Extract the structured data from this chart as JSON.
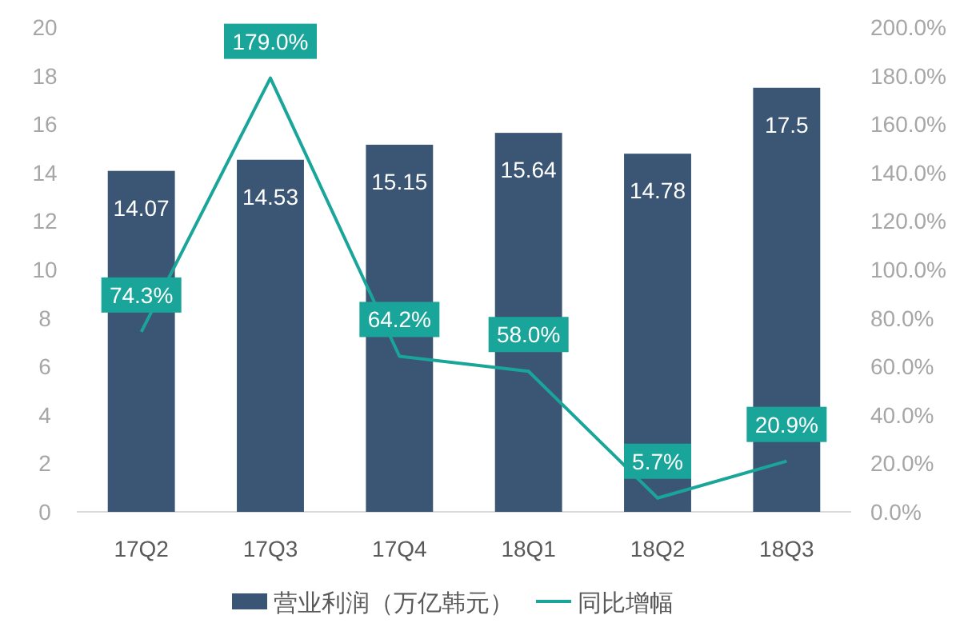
{
  "chart_data": {
    "type": "bar",
    "categories": [
      "17Q2",
      "17Q3",
      "17Q4",
      "18Q1",
      "18Q2",
      "18Q3"
    ],
    "series": [
      {
        "name": "营业利润（万亿韩元）",
        "color": "#3b5674",
        "values": [
          14.07,
          14.53,
          15.15,
          15.64,
          14.78,
          17.5
        ]
      },
      {
        "name": "同比增幅",
        "type": "line",
        "axis": "y2",
        "color": "#1aa59a",
        "values": [
          74.3,
          179.0,
          64.2,
          58.0,
          5.7,
          20.9
        ],
        "value_labels": [
          "74.3%",
          "179.0%",
          "64.2%",
          "58.0%",
          "5.7%",
          "20.9%"
        ]
      }
    ],
    "data_labels": true,
    "ylim": [
      0,
      20
    ],
    "yticks": [
      0,
      2,
      4,
      6,
      8,
      10,
      12,
      14,
      16,
      18,
      20
    ],
    "y2lim": [
      0,
      200
    ],
    "y2ticks": [
      {
        "value": 0,
        "label": "0.0%"
      },
      {
        "value": 20,
        "label": "20.0%"
      },
      {
        "value": 40,
        "label": "40.0%"
      },
      {
        "value": 60,
        "label": "60.0%"
      },
      {
        "value": 80,
        "label": "80.0%"
      },
      {
        "value": 100,
        "label": "100.0%"
      },
      {
        "value": 120,
        "label": "120.0%"
      },
      {
        "value": 140,
        "label": "140.0%"
      },
      {
        "value": 160,
        "label": "160.0%"
      },
      {
        "value": 180,
        "label": "180.0%"
      },
      {
        "value": 200,
        "label": "200.0%"
      }
    ],
    "grid": false,
    "legend": "bottom"
  }
}
